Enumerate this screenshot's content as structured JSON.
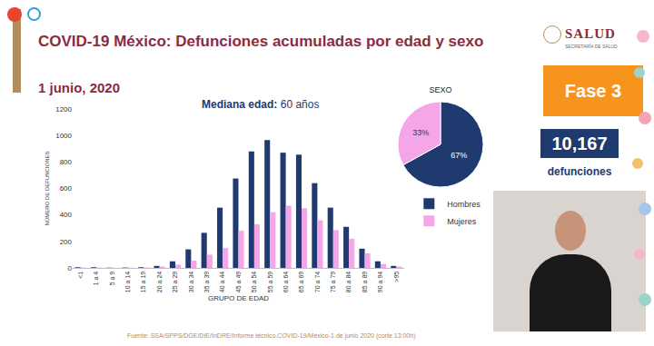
{
  "header": {
    "title": "COVID-19 México: Defunciones acumuladas por edad y sexo",
    "date": "1 junio, 2020",
    "logo": "SALUD",
    "logo_sub": "SECRETARÍA DE SALUD"
  },
  "median": {
    "label": "Mediana edad:",
    "value": "60 años"
  },
  "phase": "Fase 3",
  "deaths": {
    "value": "10,167",
    "label": "defunciones"
  },
  "source": "Fuente: SSA/SPPS/DGE/DIE/InDRE/Informe técnico.COVID-19/México-1 de junio 2020 (corte 13:00h)",
  "chart_data": [
    {
      "type": "bar",
      "xlabel": "GRUPO DE EDAD",
      "ylabel": "NÚMERO DE DEFUNCIONES",
      "categories": [
        "<1",
        "1 a 4",
        "5 a 9",
        "10 a 14",
        "15 a 19",
        "20 a 24",
        "25 a 29",
        "30 a 34",
        "35 a 39",
        "40 a 44",
        "45 a 49",
        "50 a 54",
        "55 a 59",
        "60 a 64",
        "65 a 69",
        "70 a 74",
        "75 a 79",
        "80 a 84",
        "85 a 89",
        "90 a 94",
        ">95"
      ],
      "series": [
        {
          "name": "Hombres",
          "color": "#1f3a6e",
          "values": [
            5,
            5,
            2,
            3,
            5,
            15,
            50,
            140,
            265,
            455,
            675,
            880,
            965,
            870,
            855,
            640,
            455,
            310,
            145,
            50,
            15
          ]
        },
        {
          "name": "Mujeres",
          "color": "#f4a6e8",
          "values": [
            3,
            3,
            1,
            2,
            3,
            10,
            25,
            55,
            100,
            150,
            280,
            330,
            420,
            470,
            450,
            360,
            285,
            220,
            110,
            30,
            10
          ]
        }
      ],
      "ylim": [
        0,
        1200
      ],
      "yticks": [
        0,
        200,
        400,
        600,
        800,
        1000,
        1200
      ],
      "grid": false,
      "legend": "right"
    },
    {
      "type": "pie",
      "title": "SEXO",
      "values": [
        67,
        33
      ],
      "value_labels": [
        "67%",
        "33%"
      ],
      "colors": [
        "#1f3a6e",
        "#f4a6e8"
      ],
      "data_labels": true
    }
  ]
}
